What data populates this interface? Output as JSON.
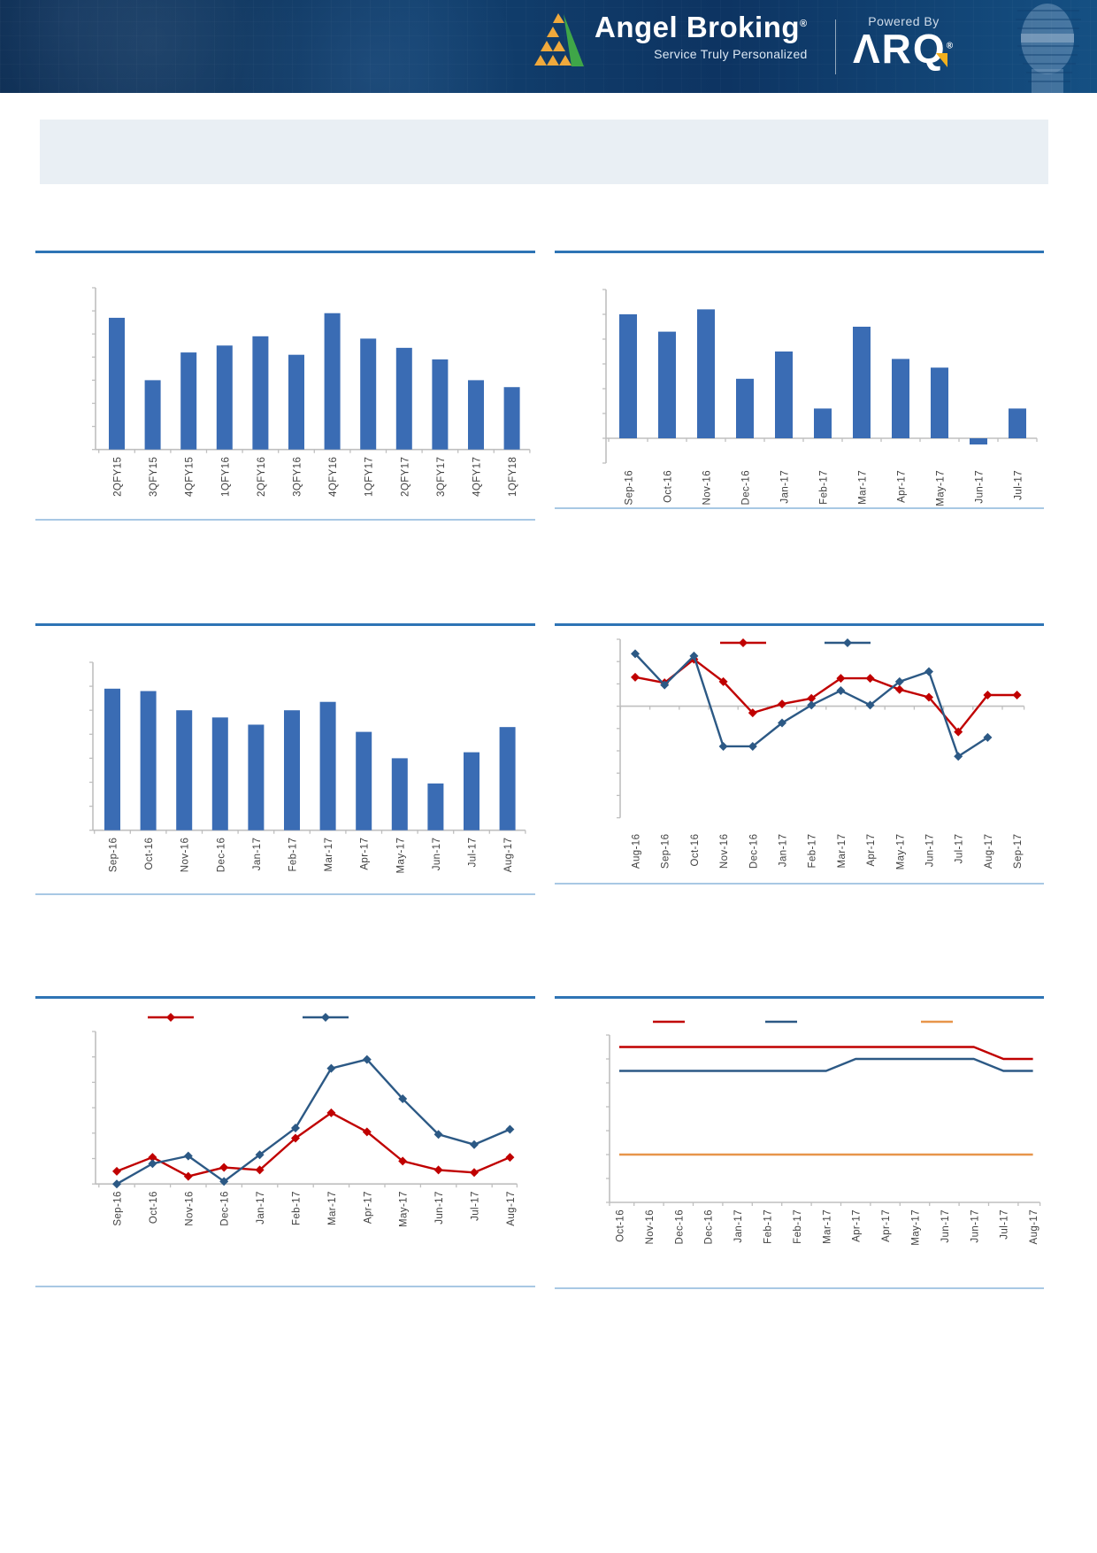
{
  "header": {
    "brand": "Angel Broking",
    "brand_reg": "®",
    "tagline": "Service Truly Personalized",
    "powered_by": "Powered By",
    "arq_logo": "ΛRQ",
    "arq_reg": "®"
  },
  "title_box": {
    "text": ""
  },
  "colors": {
    "bar": "#3A6CB4",
    "red": "#C00000",
    "blue": "#2C5985",
    "orange": "#E7954A",
    "divider": "#2E74B5",
    "underline": "#A8C8E4",
    "axis": "#BFBFBF",
    "label": "#404040",
    "header_bg": "#0E3766",
    "title_box_bg": "#E9EFF4",
    "logo_yellow": "#F0A93C",
    "logo_green": "#3FA648"
  },
  "chart_data": [
    {
      "id": "quarterly-bar-chart",
      "type": "bar",
      "title": "",
      "xlabel": "",
      "ylabel": "",
      "yticks_labeled": false,
      "y_unit": "axis ticks (tick labels not visible)",
      "ylim": [
        0,
        7
      ],
      "categories": [
        "2QFY15",
        "3QFY15",
        "4QFY15",
        "1QFY16",
        "2QFY16",
        "3QFY16",
        "4QFY16",
        "1QFY17",
        "2QFY17",
        "3QFY17",
        "4QFY17",
        "1QFY18"
      ],
      "values": [
        5.7,
        3.0,
        4.2,
        4.5,
        4.9,
        4.1,
        5.9,
        4.8,
        4.4,
        3.9,
        3.0,
        2.7
      ],
      "color_key": "bar"
    },
    {
      "id": "monthly-bar-chart-top-right",
      "type": "bar",
      "title": "",
      "xlabel": "",
      "ylabel": "",
      "yticks_labeled": false,
      "y_unit": "axis ticks (tick labels not visible)",
      "ylim": [
        -1,
        6
      ],
      "categories": [
        "Sep-16",
        "Oct-16",
        "Nov-16",
        "Dec-16",
        "Jan-17",
        "Feb-17",
        "Mar-17",
        "Apr-17",
        "May-17",
        "Jun-17",
        "Jul-17"
      ],
      "values": [
        5.0,
        4.3,
        5.2,
        2.4,
        3.5,
        1.2,
        4.5,
        3.2,
        2.85,
        -0.25,
        1.2
      ],
      "color_key": "bar"
    },
    {
      "id": "monthly-bar-chart-mid-left",
      "type": "bar",
      "title": "",
      "xlabel": "",
      "ylabel": "",
      "yticks_labeled": false,
      "y_unit": "axis ticks (tick labels not visible)",
      "ylim": [
        0,
        7
      ],
      "categories": [
        "Sep-16",
        "Oct-16",
        "Nov-16",
        "Dec-16",
        "Jan-17",
        "Feb-17",
        "Mar-17",
        "Apr-17",
        "May-17",
        "Jun-17",
        "Jul-17",
        "Aug-17"
      ],
      "values": [
        5.9,
        5.8,
        5.0,
        4.7,
        4.4,
        5.0,
        5.35,
        4.1,
        3.0,
        1.95,
        3.25,
        4.3
      ],
      "color_key": "bar"
    },
    {
      "id": "dual-line-chart-mid-right",
      "type": "line",
      "title": "",
      "xlabel": "",
      "ylabel": "",
      "yticks_labeled": false,
      "y_unit": "axis ticks (tick labels not visible)",
      "ylim": [
        -5,
        3
      ],
      "legend_position": "top",
      "legend": [
        {
          "label": "",
          "marker": "line-diamond",
          "color_key": "red"
        },
        {
          "label": "",
          "marker": "line-diamond",
          "color_key": "blue"
        }
      ],
      "categories": [
        "Aug-16",
        "Sep-16",
        "Oct-16",
        "Nov-16",
        "Dec-16",
        "Jan-17",
        "Feb-17",
        "Mar-17",
        "Apr-17",
        "May-17",
        "Jun-17",
        "Jul-17",
        "Aug-17",
        "Sep-17"
      ],
      "series": [
        {
          "name": "red-series",
          "color_key": "red",
          "values": [
            1.3,
            1.05,
            2.1,
            1.1,
            -0.3,
            0.1,
            0.35,
            1.25,
            1.25,
            0.75,
            0.4,
            -1.15,
            0.5,
            0.5
          ]
        },
        {
          "name": "blue-series",
          "color_key": "blue",
          "values": [
            2.35,
            0.95,
            2.25,
            -1.8,
            -1.8,
            -0.75,
            0.05,
            0.7,
            0.05,
            1.1,
            1.55,
            -2.25,
            -1.4,
            null
          ]
        }
      ]
    },
    {
      "id": "dual-line-chart-bottom-left",
      "type": "line",
      "title": "",
      "xlabel": "",
      "ylabel": "",
      "yticks_labeled": false,
      "y_unit": "axis ticks (tick labels not visible)",
      "ylim": [
        0,
        6
      ],
      "legend_position": "top",
      "legend": [
        {
          "label": "",
          "marker": "line-diamond",
          "color_key": "red"
        },
        {
          "label": "",
          "marker": "line-diamond",
          "color_key": "blue"
        }
      ],
      "categories": [
        "Sep-16",
        "Oct-16",
        "Nov-16",
        "Dec-16",
        "Jan-17",
        "Feb-17",
        "Mar-17",
        "Apr-17",
        "May-17",
        "Jun-17",
        "Jul-17",
        "Aug-17"
      ],
      "series": [
        {
          "name": "red-series",
          "color_key": "red",
          "values": [
            0.5,
            1.05,
            0.3,
            0.65,
            0.55,
            1.8,
            2.8,
            2.05,
            0.9,
            0.55,
            0.45,
            1.05
          ]
        },
        {
          "name": "blue-series",
          "color_key": "blue",
          "values": [
            0.0,
            0.8,
            1.1,
            0.1,
            1.15,
            2.2,
            4.55,
            4.9,
            3.35,
            1.95,
            1.55,
            2.15
          ]
        }
      ]
    },
    {
      "id": "triple-step-line-chart-bottom-right",
      "type": "line",
      "title": "",
      "xlabel": "",
      "ylabel": "",
      "yticks_labeled": false,
      "y_unit": "axis ticks (tick labels not visible)",
      "ylim": [
        0,
        7
      ],
      "legend_position": "top",
      "legend": [
        {
          "label": "",
          "marker": "line",
          "color_key": "red"
        },
        {
          "label": "",
          "marker": "line",
          "color_key": "blue"
        },
        {
          "label": "",
          "marker": "line",
          "color_key": "orange"
        }
      ],
      "categories": [
        "Oct-16",
        "Nov-16",
        "Dec-16",
        "Dec-16",
        "Jan-17",
        "Feb-17",
        "Feb-17",
        "Mar-17",
        "Apr-17",
        "Apr-17",
        "May-17",
        "Jun-17",
        "Jun-17",
        "Jul-17",
        "Aug-17"
      ],
      "series": [
        {
          "name": "red-series",
          "color_key": "red",
          "values": [
            6.5,
            6.5,
            6.5,
            6.5,
            6.5,
            6.5,
            6.5,
            6.5,
            6.5,
            6.5,
            6.5,
            6.5,
            6.5,
            6.0,
            6.0
          ]
        },
        {
          "name": "blue-series",
          "color_key": "blue",
          "values": [
            5.5,
            5.5,
            5.5,
            5.5,
            5.5,
            5.5,
            5.5,
            5.5,
            6.0,
            6.0,
            6.0,
            6.0,
            6.0,
            5.5,
            5.5
          ]
        },
        {
          "name": "orange-series",
          "color_key": "orange",
          "values": [
            2,
            2,
            2,
            2,
            2,
            2,
            2,
            2,
            2,
            2,
            2,
            2,
            2,
            2,
            2
          ]
        }
      ]
    }
  ]
}
